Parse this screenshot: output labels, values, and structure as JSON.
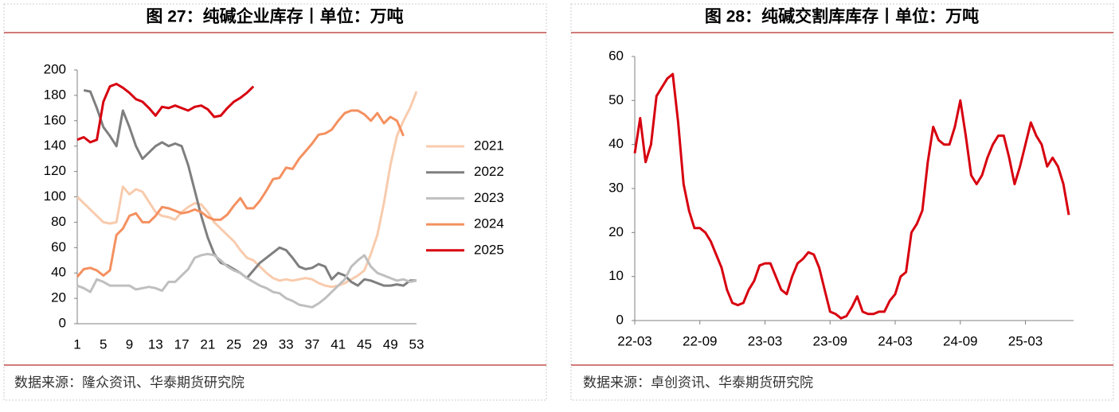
{
  "chart_data": [
    {
      "type": "line",
      "title": "图 27：纯碱企业库存丨单位：万吨",
      "source": "数据来源：隆众资讯、华泰期货研究院",
      "x": [
        1,
        2,
        3,
        4,
        5,
        6,
        7,
        8,
        9,
        10,
        11,
        12,
        13,
        14,
        15,
        16,
        17,
        18,
        19,
        20,
        21,
        22,
        23,
        24,
        25,
        26,
        27,
        28,
        29,
        30,
        31,
        32,
        33,
        34,
        35,
        36,
        37,
        38,
        39,
        40,
        41,
        42,
        43,
        44,
        45,
        46,
        47,
        48,
        49,
        50,
        51,
        52,
        53
      ],
      "xlim": [
        1,
        53
      ],
      "xticks": [
        1,
        5,
        9,
        13,
        17,
        21,
        25,
        29,
        33,
        37,
        41,
        45,
        49,
        53
      ],
      "ylim": [
        0,
        200
      ],
      "yticks": [
        0,
        20,
        40,
        60,
        80,
        100,
        120,
        140,
        160,
        180,
        200
      ],
      "legend": "right",
      "series": [
        {
          "name": "2021",
          "color": "#f8cbad",
          "values": [
            100,
            95,
            90,
            85,
            80,
            79,
            80,
            108,
            102,
            106,
            104,
            96,
            88,
            85,
            84,
            82,
            88,
            92,
            95,
            94,
            88,
            80,
            75,
            70,
            65,
            58,
            52,
            50,
            45,
            40,
            36,
            34,
            35,
            34,
            35,
            36,
            35,
            32,
            30,
            29,
            30,
            32,
            35,
            38,
            42,
            55,
            70,
            95,
            125,
            148,
            160,
            170,
            183
          ]
        },
        {
          "name": "2022",
          "color": "#7f7f7f",
          "values": [
            null,
            184,
            183,
            170,
            155,
            148,
            140,
            168,
            155,
            140,
            130,
            135,
            140,
            143,
            140,
            142,
            140,
            125,
            105,
            85,
            68,
            55,
            48,
            46,
            43,
            40,
            36,
            42,
            48,
            52,
            56,
            60,
            58,
            52,
            45,
            43,
            44,
            47,
            45,
            35,
            40,
            38,
            33,
            30,
            35,
            34,
            32,
            30,
            30,
            31,
            30,
            34,
            34
          ]
        },
        {
          "name": "2023",
          "color": "#bfbfbf",
          "values": [
            30,
            28,
            25,
            35,
            33,
            30,
            30,
            30,
            30,
            27,
            28,
            29,
            28,
            26,
            33,
            33,
            38,
            43,
            52,
            54,
            55,
            54,
            50,
            45,
            42,
            40,
            36,
            33,
            30,
            28,
            25,
            24,
            20,
            18,
            15,
            14,
            13,
            16,
            20,
            25,
            30,
            35,
            45,
            50,
            54,
            45,
            40,
            38,
            36,
            34,
            35,
            33,
            34
          ]
        },
        {
          "name": "2024",
          "color": "#f4905f",
          "values": [
            37,
            43,
            44,
            42,
            38,
            42,
            70,
            75,
            85,
            87,
            80,
            80,
            85,
            92,
            91,
            89,
            87,
            88,
            90,
            88,
            84,
            82,
            82,
            86,
            93,
            99,
            91,
            91,
            97,
            105,
            114,
            115,
            123,
            122,
            130,
            136,
            142,
            149,
            150,
            153,
            160,
            166,
            168,
            168,
            165,
            160,
            166,
            158,
            163,
            160,
            148,
            null,
            null
          ]
        },
        {
          "name": "2025",
          "color": "#d7000f",
          "values": [
            145,
            147,
            143,
            145,
            175,
            187,
            189,
            186,
            182,
            177,
            175,
            170,
            164,
            171,
            170,
            172,
            170,
            168,
            171,
            172,
            169,
            163,
            164,
            170,
            175,
            178,
            182,
            187,
            null,
            null,
            null,
            null,
            null,
            null,
            null,
            null,
            null,
            null,
            null,
            null,
            null,
            null,
            null,
            null,
            null,
            null,
            null,
            null,
            null,
            null,
            null,
            null,
            null
          ]
        }
      ]
    },
    {
      "type": "line",
      "title": "图 28：纯碱交割库库存丨单位：万吨",
      "source": "数据来源：卓创资讯、华泰期货研究院",
      "categories": [
        "22-03",
        null,
        null,
        null,
        null,
        null,
        null,
        null,
        null,
        null,
        null,
        null,
        "22-09",
        null,
        null,
        null,
        null,
        null,
        null,
        null,
        null,
        null,
        null,
        null,
        "23-03",
        null,
        null,
        null,
        null,
        null,
        null,
        null,
        null,
        null,
        null,
        null,
        "23-09",
        null,
        null,
        null,
        null,
        null,
        null,
        null,
        null,
        null,
        null,
        null,
        "24-03",
        null,
        null,
        null,
        null,
        null,
        null,
        null,
        null,
        null,
        null,
        null,
        "24-09",
        null,
        null,
        null,
        null,
        null,
        null,
        null,
        null,
        null,
        null,
        null,
        "25-03",
        null,
        null,
        null,
        null,
        null,
        null,
        null,
        null
      ],
      "ylim": [
        0,
        60
      ],
      "yticks": [
        0,
        10,
        20,
        30,
        40,
        50,
        60
      ],
      "series": [
        {
          "name": null,
          "color": "#d7000f",
          "values": [
            38,
            46,
            36,
            40,
            51,
            53,
            55,
            56,
            45,
            31,
            25,
            21,
            21,
            20,
            18,
            15,
            12,
            7,
            4,
            3.5,
            4,
            7,
            9,
            12.5,
            13,
            13,
            10,
            7,
            6,
            10,
            13,
            14,
            15.5,
            15,
            12,
            7,
            2,
            1.5,
            0.5,
            1,
            3,
            5.5,
            2,
            1.5,
            1.5,
            2,
            2,
            4.5,
            6,
            10,
            11,
            20,
            22,
            25,
            36,
            44,
            41,
            40,
            40,
            44,
            50,
            42,
            33,
            31,
            33,
            37,
            40,
            42,
            42,
            37,
            31,
            35,
            40,
            45,
            42,
            40,
            35,
            37,
            35,
            31,
            24
          ]
        }
      ]
    }
  ]
}
